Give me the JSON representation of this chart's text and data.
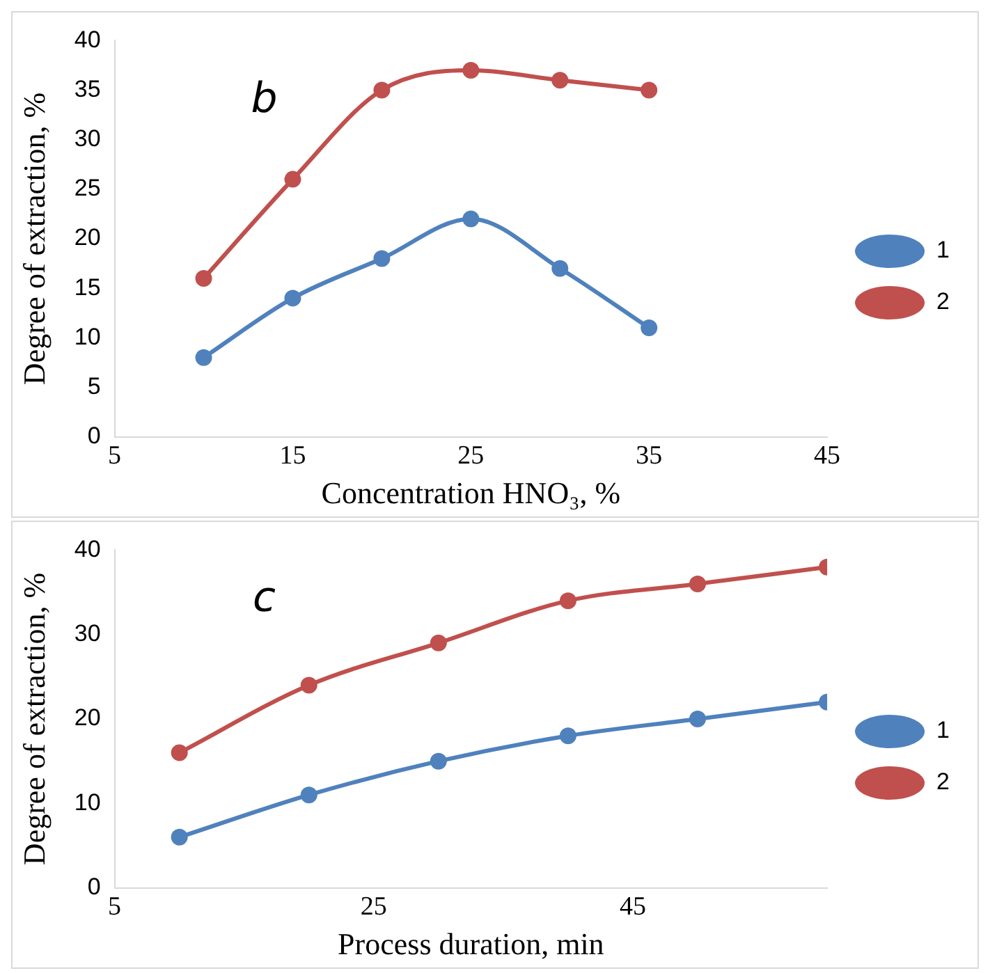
{
  "chart_data": [
    {
      "type": "line",
      "xlabel": "Concentration HNO₃, %",
      "ylabel": "Degree of extraction, %",
      "annotations": [
        "b"
      ],
      "x": [
        10,
        15,
        20,
        25,
        30,
        35
      ],
      "series": [
        {
          "name": "1",
          "color": "#4f81bd",
          "values": [
            8,
            14,
            18,
            22,
            17,
            11
          ]
        },
        {
          "name": "2",
          "color": "#c0504d",
          "values": [
            16,
            26,
            35,
            37,
            36,
            35
          ]
        }
      ],
      "xlim": [
        5,
        45
      ],
      "xticks": [
        5,
        15,
        25,
        35,
        45
      ],
      "ylim": [
        0,
        40
      ],
      "yticks": [
        0,
        5,
        10,
        15,
        20,
        25,
        30,
        35,
        40
      ],
      "grid": false,
      "legend": "right",
      "marker": "circle",
      "line_style": "solid"
    },
    {
      "type": "line",
      "xlabel": "Process duration, min",
      "ylabel": "Degree of extraction, %",
      "annotations": [
        "c"
      ],
      "x": [
        10,
        20,
        30,
        40,
        50,
        60
      ],
      "series": [
        {
          "name": "1",
          "color": "#4f81bd",
          "values": [
            6,
            11,
            15,
            18,
            20,
            22
          ]
        },
        {
          "name": "2",
          "color": "#c0504d",
          "values": [
            16,
            24,
            29,
            34,
            36,
            38
          ]
        }
      ],
      "xlim": [
        5,
        60
      ],
      "xticks": [
        5,
        25,
        45
      ],
      "ylim": [
        0,
        40
      ],
      "yticks": [
        0,
        10,
        20,
        30,
        40
      ],
      "grid": false,
      "legend": "right",
      "marker": "circle",
      "line_style": "solid"
    }
  ]
}
